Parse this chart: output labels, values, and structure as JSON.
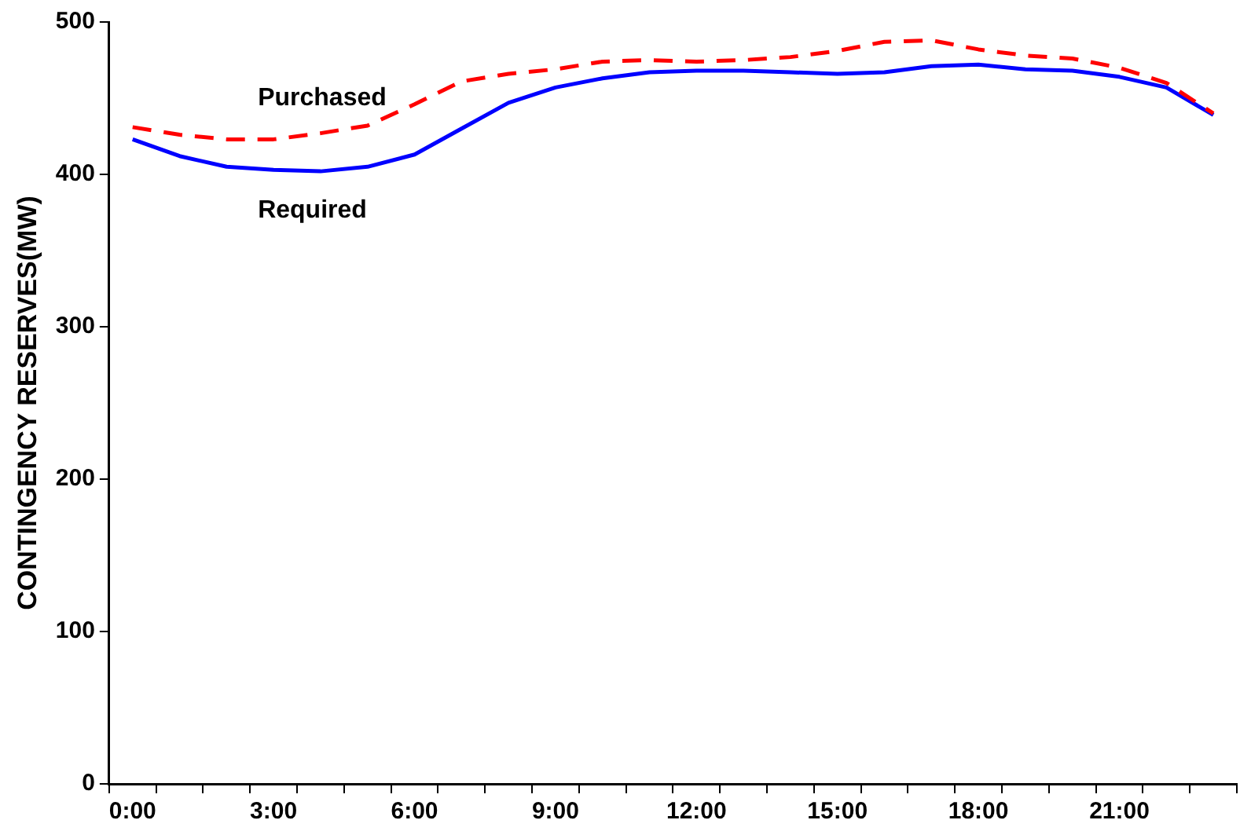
{
  "chart_data": {
    "type": "line",
    "ylabel": "CONTINGENCY RESERVES(MW)",
    "categories": [
      "0:00",
      null,
      null,
      "3:00",
      null,
      null,
      "6:00",
      null,
      null,
      "9:00",
      null,
      null,
      "12:00",
      null,
      null,
      "15:00",
      null,
      null,
      "18:00",
      null,
      null,
      "21:00",
      null,
      null
    ],
    "ylim": [
      0,
      500
    ],
    "yticks": [
      0,
      100,
      200,
      300,
      400,
      500
    ],
    "grid": false,
    "legend": false,
    "marker": "none",
    "series": [
      {
        "name": "Purchased",
        "color": "#ff0000",
        "line_style": "dashed",
        "values": [
          431,
          426,
          423,
          423,
          427,
          432,
          446,
          461,
          466,
          469,
          474,
          475,
          474,
          475,
          477,
          481,
          487,
          488,
          482,
          478,
          476,
          470,
          460,
          440
        ]
      },
      {
        "name": "Required",
        "color": "#0000ff",
        "line_style": "solid",
        "values": [
          423,
          412,
          405,
          403,
          402,
          405,
          413,
          430,
          447,
          457,
          463,
          467,
          468,
          468,
          467,
          466,
          467,
          471,
          472,
          469,
          468,
          464,
          457,
          439
        ]
      }
    ]
  }
}
